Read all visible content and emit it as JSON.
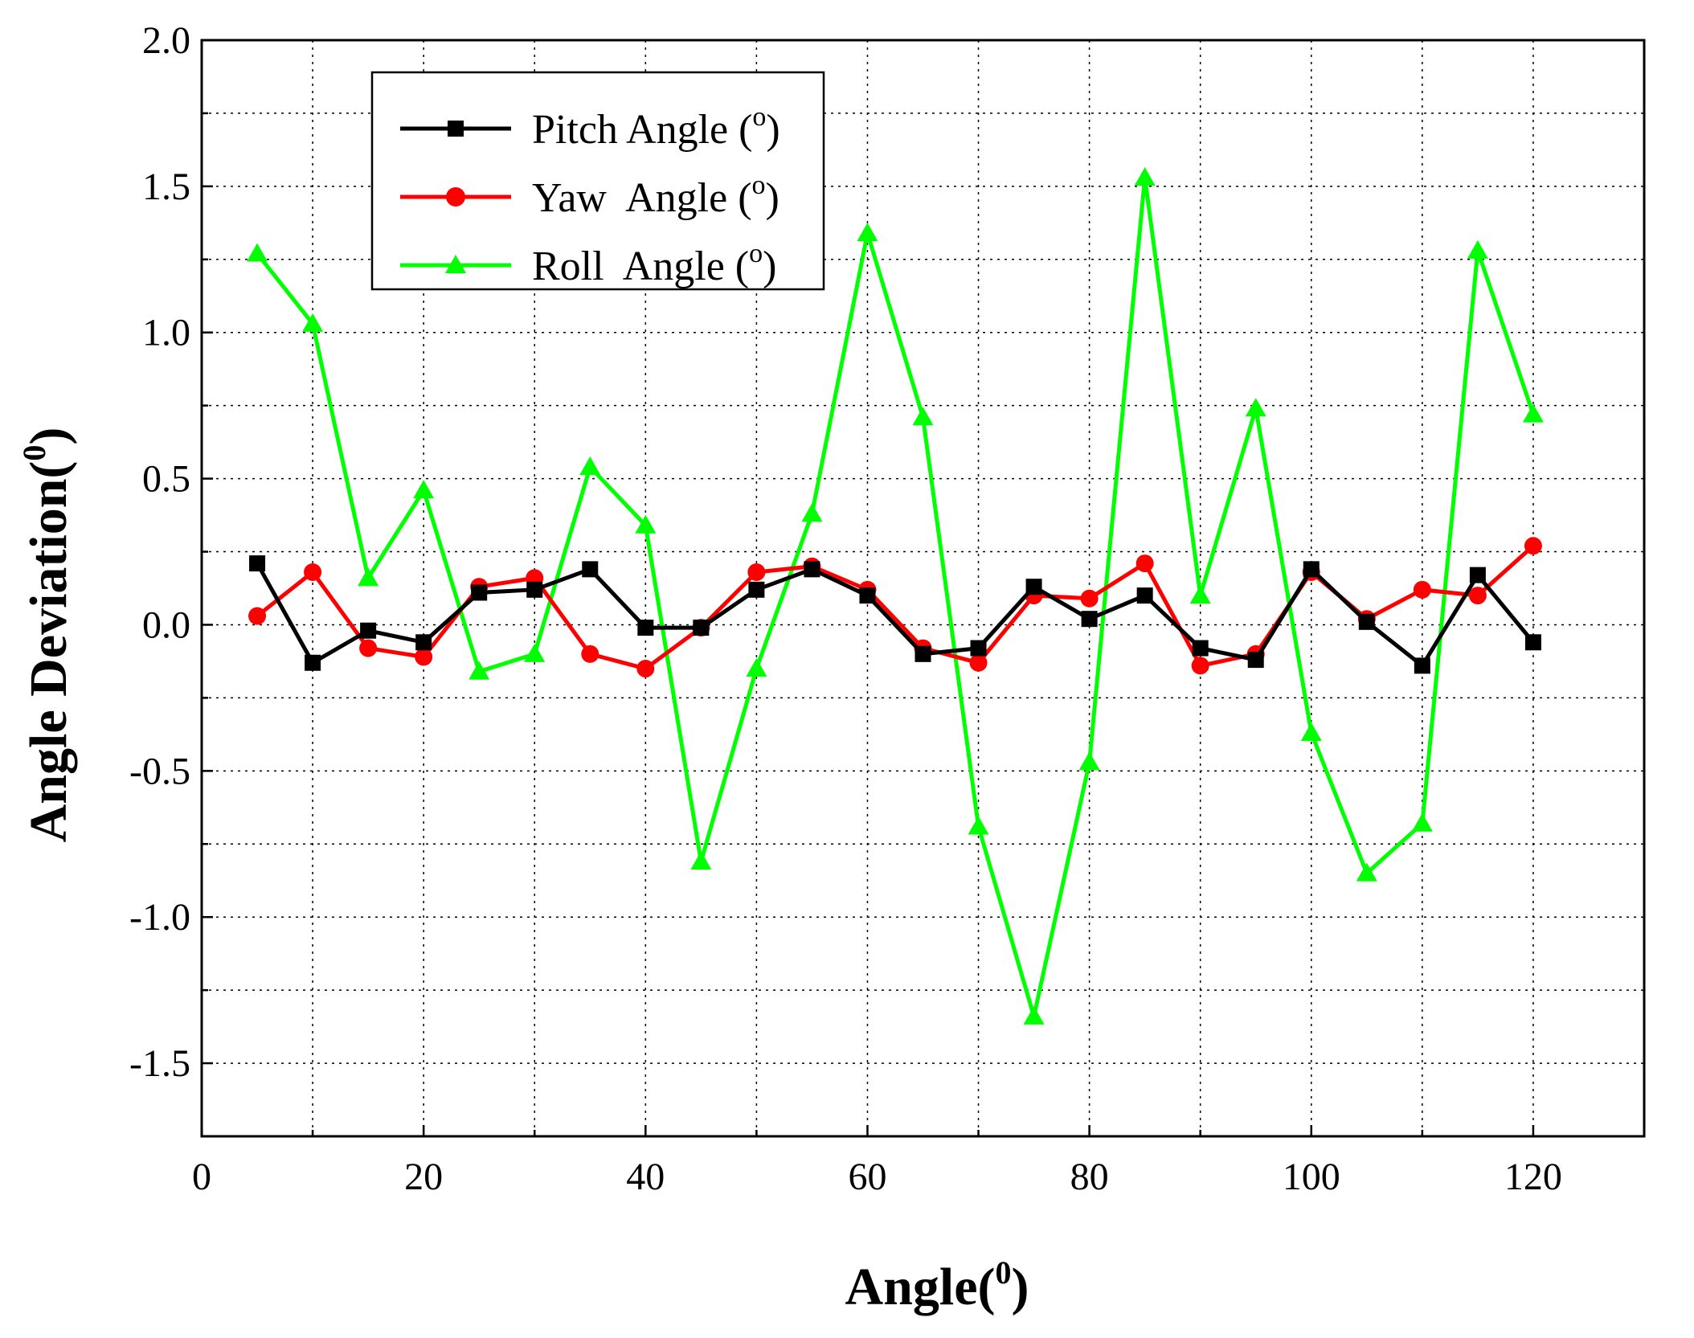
{
  "chart_data": {
    "type": "line",
    "title": "",
    "xlabel": "Angle",
    "xlabel_sup": "0",
    "xlabel_close": ")",
    "ylabel": "Angle Deviation",
    "ylabel_sup": "0",
    "ylabel_close": ")",
    "xlim": [
      0,
      130
    ],
    "ylim": [
      -1.75,
      2.0
    ],
    "x_ticks": [
      0,
      20,
      40,
      60,
      80,
      100,
      120
    ],
    "x_tick_labels": [
      "0",
      "20",
      "40",
      "60",
      "80",
      "100",
      "120"
    ],
    "y_ticks": [
      -1.5,
      -1.0,
      -0.5,
      0.0,
      0.5,
      1.0,
      1.5,
      2.0
    ],
    "y_tick_labels": [
      "-1.5",
      "-1.0",
      "-0.5",
      "0.0",
      "0.5",
      "1.0",
      "1.5",
      "2.0"
    ],
    "grid": true,
    "legend_position": "top-left",
    "x": [
      5,
      10,
      15,
      20,
      25,
      30,
      35,
      40,
      45,
      50,
      55,
      60,
      65,
      70,
      75,
      80,
      85,
      90,
      95,
      100,
      105,
      110,
      115,
      120
    ],
    "series": [
      {
        "name": "Pitch Angle (",
        "name_sup": "o",
        "name_close": ")",
        "color": "#000000",
        "marker": "square",
        "values": [
          0.21,
          -0.13,
          -0.02,
          -0.06,
          0.11,
          0.12,
          0.19,
          -0.01,
          -0.01,
          0.12,
          0.19,
          0.1,
          -0.1,
          -0.08,
          0.13,
          0.02,
          0.1,
          -0.08,
          -0.12,
          0.19,
          0.01,
          -0.14,
          0.17,
          -0.06
        ]
      },
      {
        "name": "Yaw  Angle (",
        "name_sup": "o",
        "name_close": ")",
        "color": "#ff0000",
        "marker": "circle",
        "values": [
          0.03,
          0.18,
          -0.08,
          -0.11,
          0.13,
          0.16,
          -0.1,
          -0.15,
          -0.01,
          0.18,
          0.2,
          0.12,
          -0.08,
          -0.13,
          0.1,
          0.09,
          0.21,
          -0.14,
          -0.1,
          0.18,
          0.02,
          0.12,
          0.1,
          0.27
        ]
      },
      {
        "name": "Roll  Angle (",
        "name_sup": "o",
        "name_close": ")",
        "color": "#00ff00",
        "marker": "triangle",
        "values": [
          1.27,
          1.03,
          0.16,
          0.46,
          -0.16,
          -0.1,
          0.54,
          0.34,
          -0.81,
          -0.15,
          0.38,
          1.34,
          0.71,
          -0.69,
          -1.34,
          -0.47,
          1.53,
          0.1,
          0.74,
          -0.37,
          -0.85,
          -0.68,
          1.28,
          0.72
        ]
      }
    ]
  }
}
